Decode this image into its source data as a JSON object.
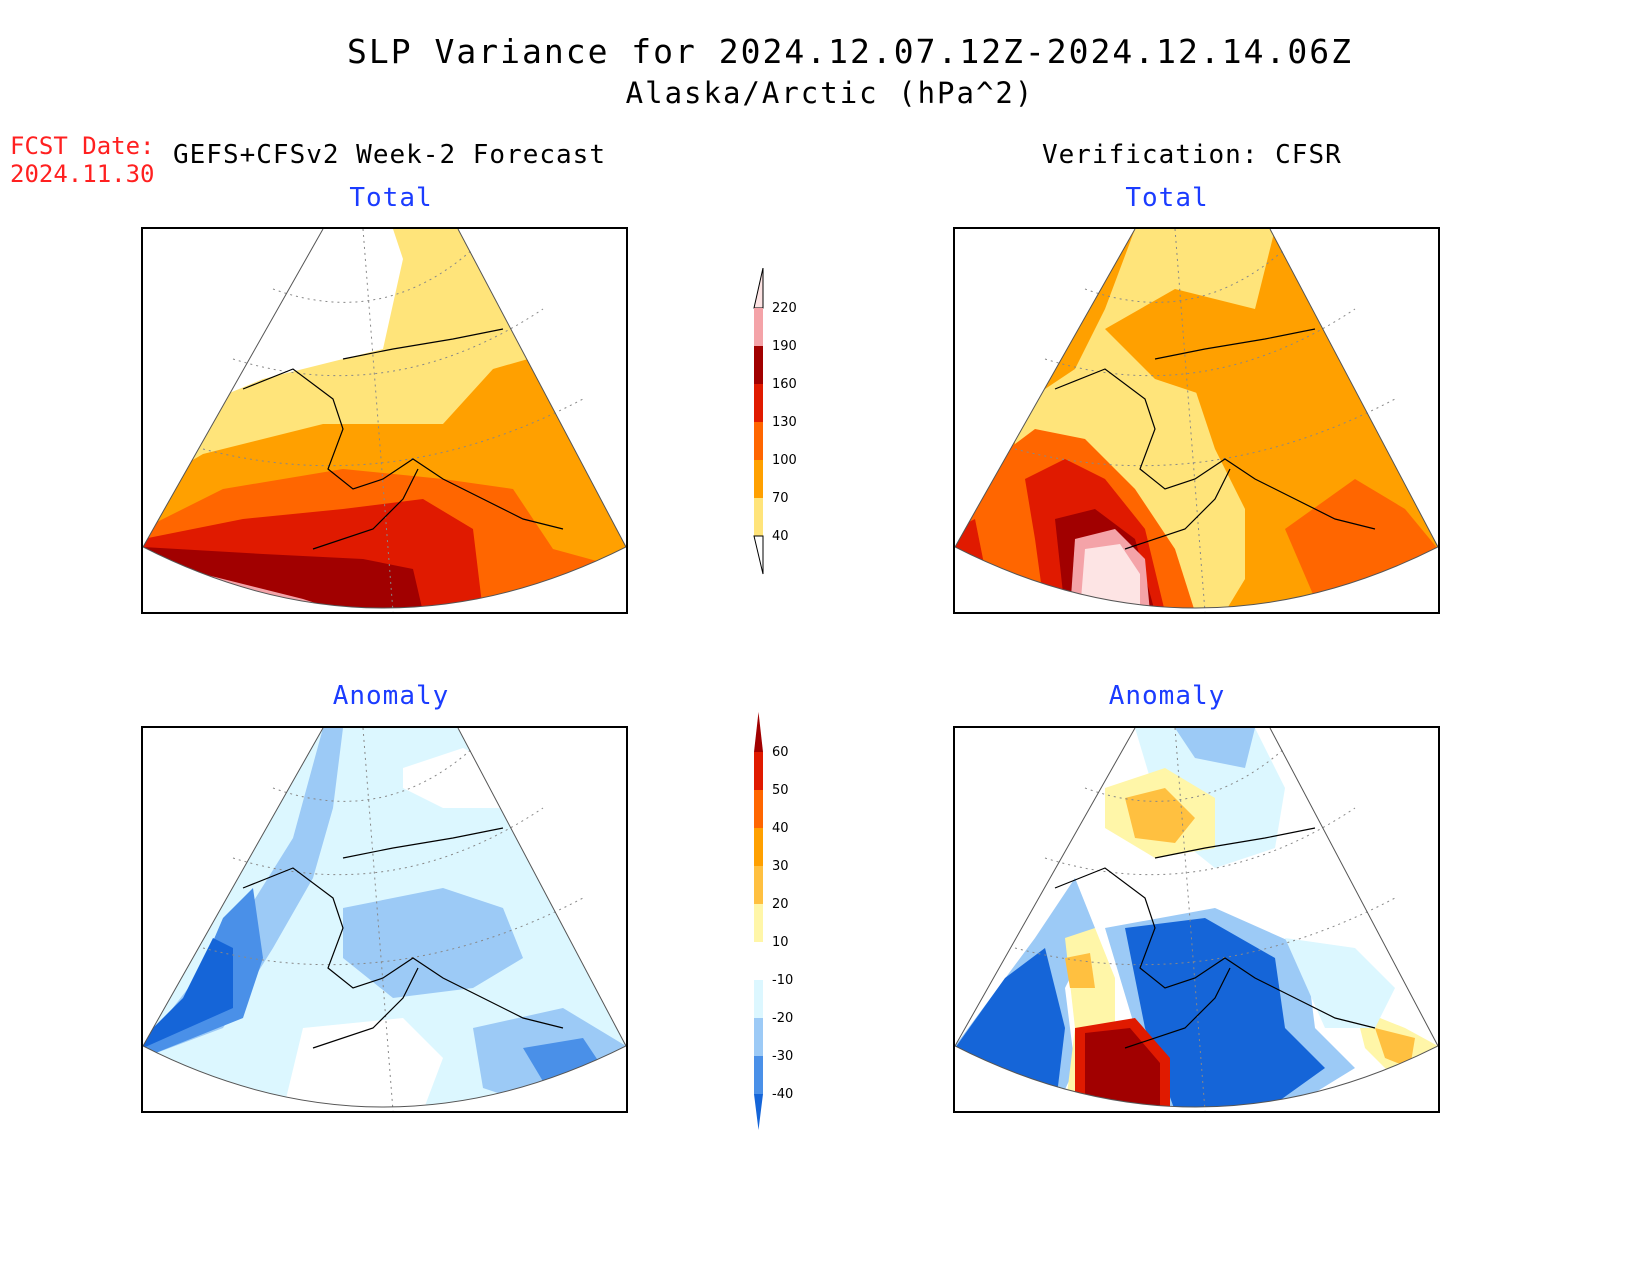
{
  "title": {
    "line1": "SLP Variance for 2024.12.07.12Z-2024.12.14.06Z",
    "line2": "Alaska/Arctic (hPa^2)"
  },
  "fcst_date": {
    "label": "FCST Date:",
    "value": "2024.11.30"
  },
  "headers": {
    "left": "GEFS+CFSv2 Week-2 Forecast",
    "right": "Verification: CFSR"
  },
  "panels": {
    "forecast_total": {
      "title": "Total"
    },
    "verification_total": {
      "title": "Total"
    },
    "forecast_anomaly": {
      "title": "Anomaly"
    },
    "verification_anomaly": {
      "title": "Anomaly"
    }
  },
  "colors": {
    "total": [
      "#ffe47a",
      "#ffa000",
      "#ff6600",
      "#e01a00",
      "#a10000",
      "#f4a3a8",
      "#fde4e4"
    ],
    "anomaly_neg": [
      "#1565d8",
      "#4a90e8",
      "#9ccaf6",
      "#dcf7ff"
    ],
    "anomaly_pos": [
      "#fff6a8",
      "#ffc040",
      "#ffa000",
      "#ff6600",
      "#e01a00",
      "#a10000"
    ]
  },
  "colorbar_total": {
    "levels": [
      "220",
      "190",
      "160",
      "130",
      "100",
      "70",
      "40"
    ]
  },
  "colorbar_anomaly": {
    "levels": [
      "60",
      "50",
      "40",
      "30",
      "20",
      "10",
      "-10",
      "-20",
      "-30",
      "-40"
    ]
  }
}
